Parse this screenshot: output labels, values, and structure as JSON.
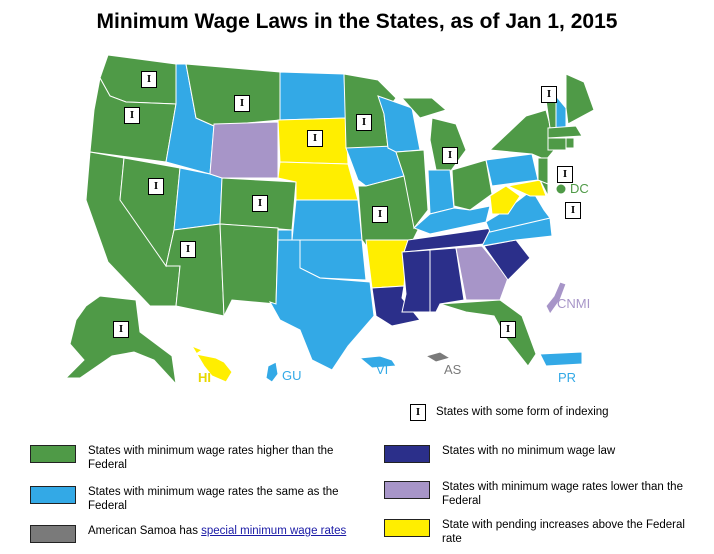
{
  "title": "Minimum Wage Laws in the States, as of Jan 1, 2015",
  "colors": {
    "higher": "#4f9a47",
    "same": "#33a9e6",
    "none": "#2b2f8a",
    "lower": "#a795c8",
    "pending": "#ffee00",
    "samoa": "#7a7a7a"
  },
  "territories": {
    "dc": "DC",
    "cnmi": "CNMI",
    "hi": "HI",
    "gu": "GU",
    "vi": "VI",
    "as": "AS",
    "pr": "PR"
  },
  "index_marker": "I",
  "legend": {
    "indexing": "States with some form of indexing",
    "higher": "States with minimum wage rates higher than the Federal",
    "same": "States with minimum wage rates the same as the Federal",
    "samoa_prefix": "American Samoa has ",
    "samoa_link": "special minimum wage rates",
    "none": "States with no minimum wage law",
    "lower": "States with minimum wage rates lower than the Federal",
    "pending": "State with pending increases above the Federal rate"
  }
}
